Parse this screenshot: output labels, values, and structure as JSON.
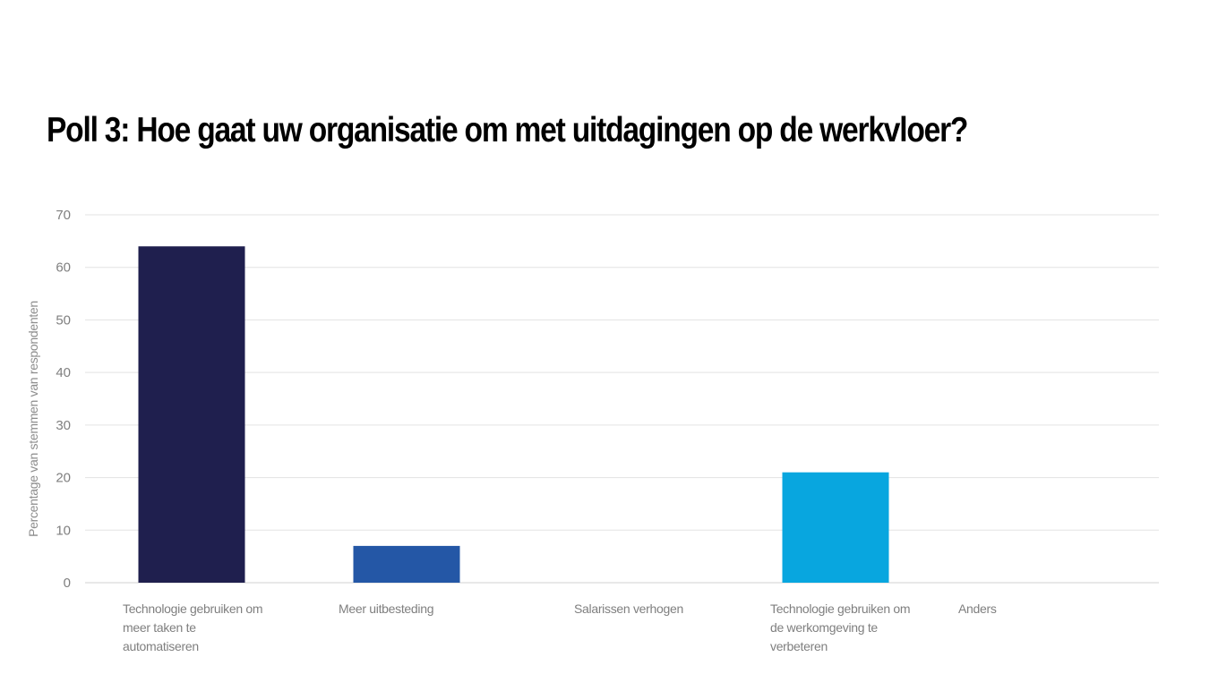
{
  "title": "Poll 3: Hoe gaat uw organisatie om met uitdagingen op de werkvloer?",
  "chart_data": {
    "type": "bar",
    "title": "",
    "xlabel": "",
    "ylabel": "Percentage van stemmen van respondenten",
    "ylim": [
      0,
      70
    ],
    "yticks": [
      0,
      10,
      20,
      30,
      40,
      50,
      60,
      70
    ],
    "grid": true,
    "categories": [
      "Technologie gebruiken om meer taken te automatiseren",
      "Meer uitbesteding",
      "Salarissen verhogen",
      "Technologie gebruiken om de werkomgeving te verbeteren",
      "Anders"
    ],
    "values": [
      64,
      7,
      0,
      21,
      0
    ],
    "colors": [
      "#1f1f4e",
      "#2457a6",
      "#1f5fae",
      "#08a6df",
      "#5a5a5a"
    ]
  }
}
